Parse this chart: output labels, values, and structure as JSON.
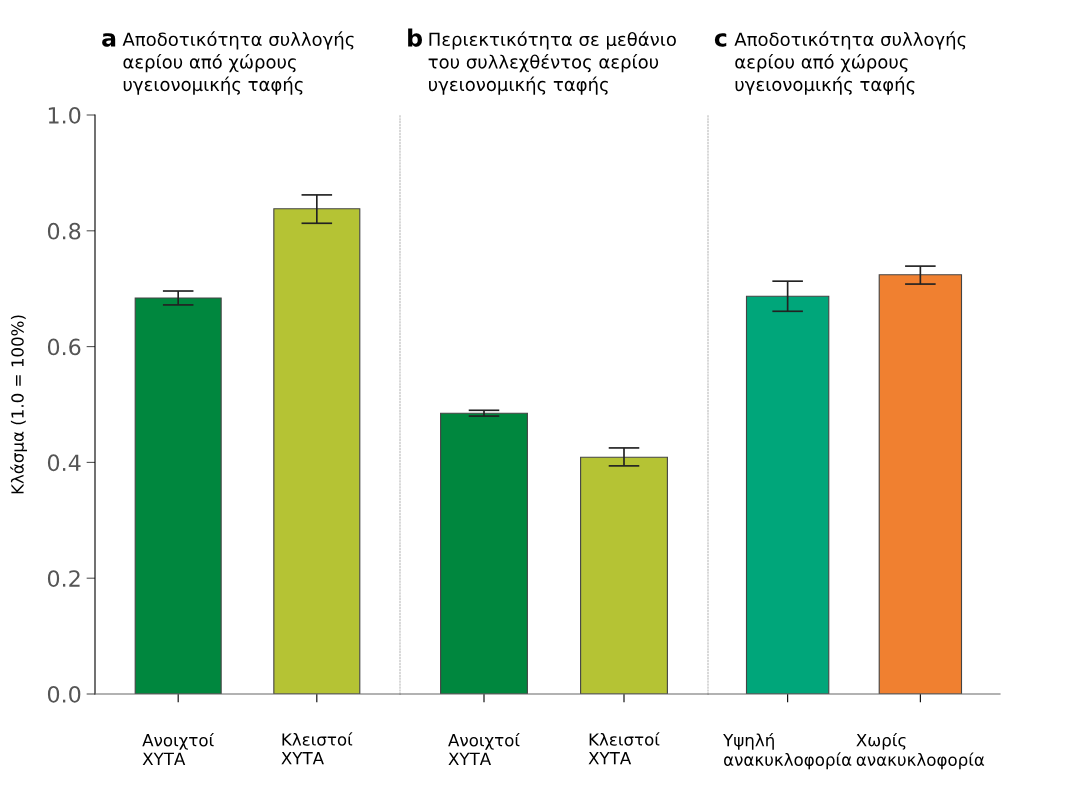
{
  "chart_data": [
    {
      "type": "bar",
      "title": "Αποδοτικότητα συλλογής\nαερίου από χώρους\nυγειονομικής ταφής",
      "annotations": [
        "a"
      ],
      "ylabel": "Κλάσμα (1.0 = 100%)",
      "categories": [
        "Ανοιχτοί\nΧΥΤΑ",
        "Κλειστοί\nΧΥΤΑ"
      ],
      "values": [
        0.684,
        0.838
      ],
      "colors": [
        "#00873e",
        "#b5c334"
      ],
      "errors": [
        [
          0.672,
          0.696
        ],
        [
          0.813,
          0.862
        ]
      ],
      "ylim": [
        0,
        1
      ],
      "yticks": [
        {
          "value": 0,
          "label": "0.0"
        },
        0.2,
        0.4,
        0.6,
        0.8,
        {
          "value": 1,
          "label": "1.0"
        }
      ]
    },
    {
      "type": "bar",
      "title": "Περιεκτικότητα σε μεθάνιο\nτου συλλεχθέντος αερίου\nυγειονομικής ταφής",
      "annotations": [
        "b"
      ],
      "categories": [
        "Ανοιχτοί\nΧΥΤΑ",
        "Κλειστοί\nΧΥΤΑ"
      ],
      "values": [
        0.485,
        0.409
      ],
      "colors": [
        "#00873e",
        "#b5c334"
      ],
      "errors": [
        [
          0.48,
          0.49
        ],
        [
          0.394,
          0.425
        ]
      ],
      "ylim": [
        0,
        1
      ],
      "tick_labels": "x"
    },
    {
      "type": "bar",
      "title": "Αποδοτικότητα συλλογής\nαερίου από χώρους\nυγειονομικής ταφής",
      "annotations": [
        "c"
      ],
      "categories": [
        "Υψηλή\nανακυκλοφορία",
        "Χωρίς\nανακυκλοφορία"
      ],
      "values": [
        0.687,
        0.724
      ],
      "colors": [
        "#00a67a",
        "#f08030"
      ],
      "errors": [
        [
          0.661,
          0.713
        ],
        [
          0.708,
          0.739
        ]
      ],
      "ylim": [
        0,
        1
      ],
      "tick_labels": "x"
    }
  ]
}
